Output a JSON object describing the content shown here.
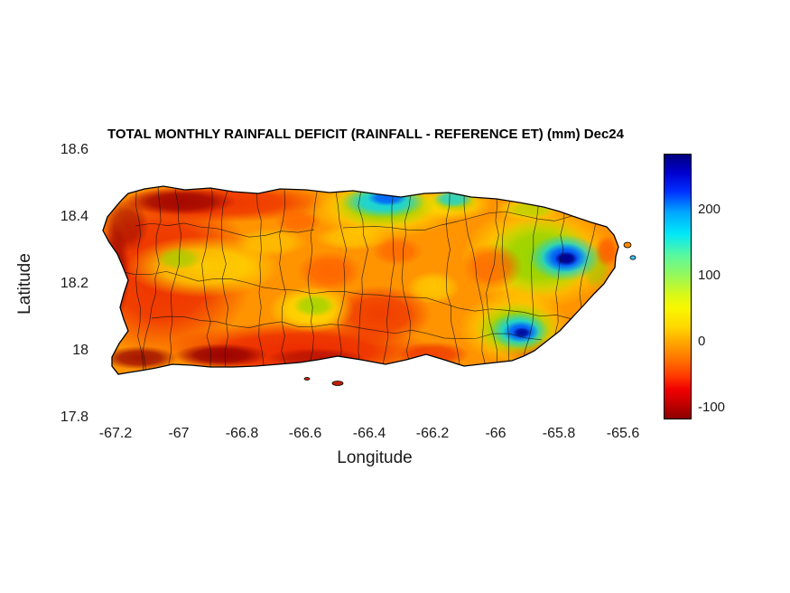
{
  "title": "TOTAL MONTHLY RAINFALL DEFICIT (RAINFALL - REFERENCE ET) (mm) Dec24",
  "axes": {
    "xlabel": "Longitude",
    "ylabel": "Latitude",
    "x_ticks": [
      "-67.2",
      "-67",
      "-66.8",
      "-66.6",
      "-66.4",
      "-66.2",
      "-66",
      "-65.8",
      "-65.6"
    ],
    "y_ticks": [
      "18.6",
      "18.4",
      "18.2",
      "18",
      "17.8"
    ]
  },
  "colorbar": {
    "ticks": [
      "200",
      "100",
      "0",
      "-100"
    ]
  },
  "chart_data": {
    "type": "heatmap",
    "subtype": "filled-contour-map-with-municipality-boundaries",
    "region": "Puerto Rico",
    "title": "TOTAL MONTHLY RAINFALL DEFICIT (RAINFALL - REFERENCE ET) (mm) Dec24",
    "xlabel": "Longitude",
    "ylabel": "Latitude",
    "xlim": [
      -67.3,
      -65.55
    ],
    "ylim": [
      17.8,
      18.6
    ],
    "x_ticks": [
      -67.2,
      -67,
      -66.8,
      -66.6,
      -66.4,
      -66.2,
      -66,
      -65.8,
      -65.6
    ],
    "y_ticks": [
      17.8,
      18,
      18.2,
      18.4,
      18.6
    ],
    "colormap": "jet reversed (blue = rainfall surplus, dark red = deficit)",
    "colorbar_ticks": [
      -100,
      0,
      100,
      200
    ],
    "colorbar_range": [
      -115,
      285
    ],
    "grid": false,
    "legend_position": "right colorbar",
    "sample_points": [
      {
        "lon": -67.05,
        "lat": 18.45,
        "value": -90
      },
      {
        "lon": -66.75,
        "lat": 18.47,
        "value": -85
      },
      {
        "lon": -67.2,
        "lat": 18.15,
        "value": -80
      },
      {
        "lon": -66.95,
        "lat": 18.28,
        "value": 20
      },
      {
        "lon": -67.1,
        "lat": 17.97,
        "value": -100
      },
      {
        "lon": -66.85,
        "lat": 17.97,
        "value": -110
      },
      {
        "lon": -66.55,
        "lat": 18.1,
        "value": 30
      },
      {
        "lon": -66.4,
        "lat": 18.45,
        "value": 200
      },
      {
        "lon": -66.15,
        "lat": 18.44,
        "value": 130
      },
      {
        "lon": -66.35,
        "lat": 18.25,
        "value": -20
      },
      {
        "lon": -66.45,
        "lat": 18.0,
        "value": -70
      },
      {
        "lon": -66.3,
        "lat": 17.97,
        "value": -75
      },
      {
        "lon": -66.0,
        "lat": 18.25,
        "value": -40
      },
      {
        "lon": -65.9,
        "lat": 18.3,
        "value": 120
      },
      {
        "lon": -65.78,
        "lat": 18.28,
        "value": 280
      },
      {
        "lon": -65.93,
        "lat": 18.05,
        "value": 230
      },
      {
        "lon": -65.65,
        "lat": 18.3,
        "value": -30
      }
    ]
  }
}
